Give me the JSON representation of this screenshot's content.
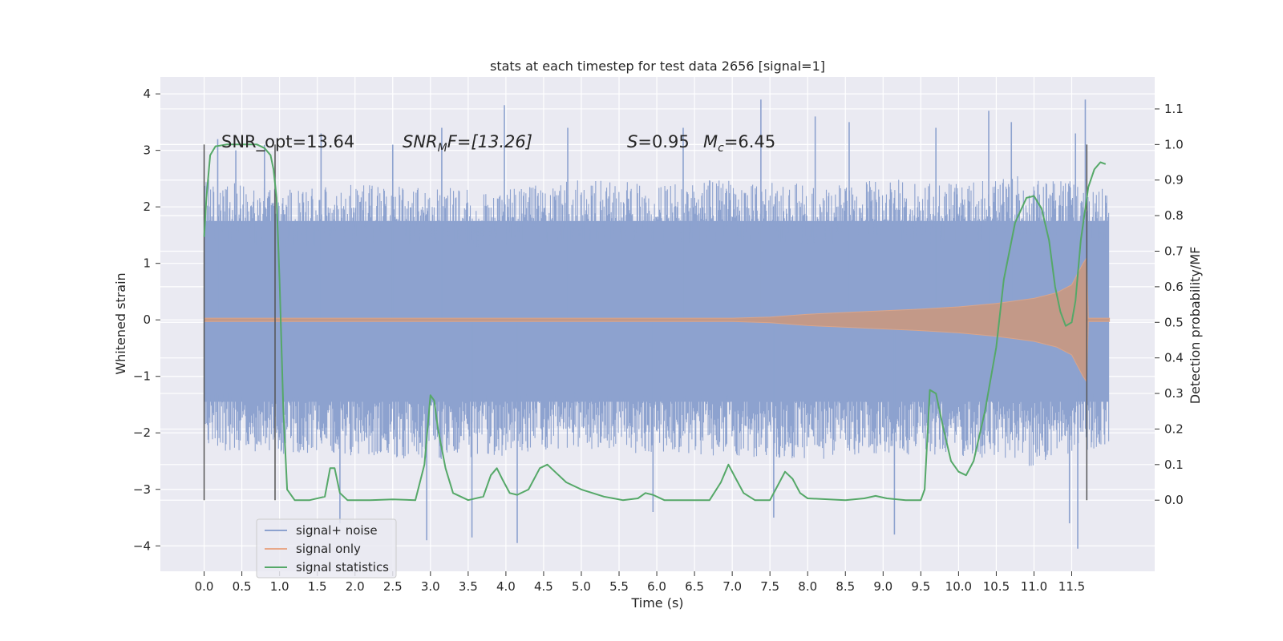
{
  "chart_data": {
    "type": "line",
    "title": "stats at each timestep for test data 2656 [signal=1]",
    "xlabel": "Time (s)",
    "ylabel_left": "Whitened strain",
    "ylabel_right": "Detection probability/MF",
    "xlim": [
      -0.58,
      12.6
    ],
    "ylim_left": [
      -4.45,
      4.3
    ],
    "ylim_right": [
      -0.2,
      1.19
    ],
    "x_ticks": [
      0.0,
      0.5,
      1.0,
      1.5,
      2.0,
      2.5,
      3.0,
      3.5,
      4.0,
      4.5,
      5.0,
      5.5,
      6.0,
      6.5,
      7.0,
      7.5,
      8.0,
      8.5,
      9.0,
      9.5,
      10.0,
      10.5,
      11.0,
      11.5
    ],
    "x_tick_labels": [
      "0.0",
      "0.5",
      "1.0",
      "1.5",
      "2.0",
      "2.5",
      "3.0",
      "3.5",
      "4.0",
      "4.5",
      "5.0",
      "5.5",
      "6.0",
      "6.5",
      "7.0",
      "7.5",
      "8.0",
      "8.5",
      "9.0",
      "9.5",
      "10.0",
      "10.5",
      "11.0",
      "11.5"
    ],
    "y_left_ticks": [
      -4,
      -3,
      -2,
      -1,
      0,
      1,
      2,
      3,
      4
    ],
    "y_left_tick_labels": [
      "−4",
      "−3",
      "−2",
      "−1",
      "0",
      "1",
      "2",
      "3",
      "4"
    ],
    "y_right_ticks": [
      0.0,
      0.1,
      0.2,
      0.3,
      0.4,
      0.5,
      0.6,
      0.7,
      0.8,
      0.9,
      1.0,
      1.1
    ],
    "y_right_tick_labels": [
      "0.0",
      "0.1",
      "0.2",
      "0.3",
      "0.4",
      "0.5",
      "0.6",
      "0.7",
      "0.8",
      "0.9",
      "1.0",
      "1.1"
    ],
    "grid": true,
    "legend_placement": "lower-left",
    "annotations": {
      "snr_opt": "SNR_opt=13.64",
      "snr_mf_symbol": "SNR",
      "snr_mf_sub": "M",
      "snr_mf_rest": "F=[13.26]",
      "s_symbol": "S",
      "s_rest": "=0.95",
      "mc_symbol": "M",
      "mc_sub": "c",
      "mc_rest": "=6.45"
    },
    "vertical_markers_x": [
      0.0,
      0.94,
      11.7
    ],
    "series": [
      {
        "name": "signal+ noise",
        "color": "#8da2cf",
        "axis": "left",
        "x_range": [
          0.0,
          11.99
        ],
        "envelope_upper": [
          [
            0.0,
            2.5
          ],
          [
            1.0,
            2.3
          ],
          [
            2.0,
            2.4
          ],
          [
            3.0,
            2.4
          ],
          [
            4.0,
            2.3
          ],
          [
            5.0,
            2.5
          ],
          [
            6.0,
            2.4
          ],
          [
            7.0,
            2.5
          ],
          [
            8.0,
            2.4
          ],
          [
            9.0,
            2.5
          ],
          [
            10.0,
            2.4
          ],
          [
            11.0,
            2.6
          ],
          [
            11.99,
            2.3
          ]
        ],
        "envelope_lower": [
          [
            0.0,
            -2.3
          ],
          [
            1.0,
            -2.4
          ],
          [
            2.0,
            -2.4
          ],
          [
            3.0,
            -2.5
          ],
          [
            4.0,
            -2.4
          ],
          [
            5.0,
            -2.3
          ],
          [
            6.0,
            -2.4
          ],
          [
            7.0,
            -2.4
          ],
          [
            8.0,
            -2.5
          ],
          [
            9.0,
            -2.4
          ],
          [
            10.0,
            -2.4
          ],
          [
            11.0,
            -2.6
          ],
          [
            11.99,
            -2.2
          ]
        ],
        "peaks": [
          [
            0.18,
            3.2
          ],
          [
            0.42,
            3.0
          ],
          [
            0.8,
            3.1
          ],
          [
            1.55,
            3.3
          ],
          [
            1.8,
            -3.6
          ],
          [
            2.5,
            3.1
          ],
          [
            2.95,
            -3.9
          ],
          [
            3.15,
            3.4
          ],
          [
            3.55,
            -3.85
          ],
          [
            3.98,
            3.8
          ],
          [
            4.15,
            -3.95
          ],
          [
            4.82,
            3.4
          ],
          [
            5.95,
            -3.4
          ],
          [
            6.35,
            3.4
          ],
          [
            7.38,
            3.9
          ],
          [
            7.55,
            -3.5
          ],
          [
            8.1,
            3.6
          ],
          [
            8.55,
            3.5
          ],
          [
            9.15,
            -3.8
          ],
          [
            9.7,
            3.4
          ],
          [
            10.4,
            3.7
          ],
          [
            10.7,
            3.5
          ],
          [
            11.47,
            -3.6
          ],
          [
            11.58,
            -4.05
          ],
          [
            11.68,
            3.9
          ],
          [
            11.55,
            3.3
          ]
        ]
      },
      {
        "name": "signal only",
        "color": "#dd8452",
        "axis": "left",
        "envelope": [
          [
            0.0,
            0.03
          ],
          [
            7.0,
            0.03
          ],
          [
            7.5,
            0.05
          ],
          [
            8.0,
            0.1
          ],
          [
            8.5,
            0.13
          ],
          [
            9.0,
            0.16
          ],
          [
            9.5,
            0.19
          ],
          [
            10.0,
            0.23
          ],
          [
            10.5,
            0.29
          ],
          [
            11.0,
            0.38
          ],
          [
            11.3,
            0.48
          ],
          [
            11.5,
            0.62
          ],
          [
            11.65,
            1.0
          ],
          [
            11.7,
            1.1
          ],
          [
            11.72,
            0.03
          ],
          [
            12.0,
            0.03
          ]
        ]
      },
      {
        "name": "signal statistics",
        "color": "#55a868",
        "axis": "right",
        "points": [
          [
            0.0,
            0.74
          ],
          [
            0.03,
            0.85
          ],
          [
            0.08,
            0.97
          ],
          [
            0.15,
            0.995
          ],
          [
            0.3,
            1.0
          ],
          [
            0.5,
            1.0
          ],
          [
            0.7,
            1.0
          ],
          [
            0.8,
            0.99
          ],
          [
            0.88,
            0.97
          ],
          [
            0.92,
            0.93
          ],
          [
            0.96,
            0.85
          ],
          [
            1.0,
            0.62
          ],
          [
            1.05,
            0.25
          ],
          [
            1.1,
            0.03
          ],
          [
            1.2,
            0.0
          ],
          [
            1.4,
            0.0
          ],
          [
            1.6,
            0.01
          ],
          [
            1.67,
            0.09
          ],
          [
            1.73,
            0.09
          ],
          [
            1.8,
            0.02
          ],
          [
            1.9,
            0.0
          ],
          [
            2.2,
            0.0
          ],
          [
            2.5,
            0.002
          ],
          [
            2.8,
            0.0
          ],
          [
            2.92,
            0.1
          ],
          [
            3.0,
            0.295
          ],
          [
            3.05,
            0.28
          ],
          [
            3.1,
            0.2
          ],
          [
            3.2,
            0.09
          ],
          [
            3.3,
            0.02
          ],
          [
            3.5,
            0.0
          ],
          [
            3.7,
            0.01
          ],
          [
            3.8,
            0.07
          ],
          [
            3.88,
            0.09
          ],
          [
            3.95,
            0.06
          ],
          [
            4.05,
            0.02
          ],
          [
            4.15,
            0.015
          ],
          [
            4.3,
            0.03
          ],
          [
            4.45,
            0.09
          ],
          [
            4.55,
            0.1
          ],
          [
            4.65,
            0.08
          ],
          [
            4.8,
            0.05
          ],
          [
            5.0,
            0.03
          ],
          [
            5.3,
            0.01
          ],
          [
            5.55,
            0.0
          ],
          [
            5.75,
            0.005
          ],
          [
            5.85,
            0.02
          ],
          [
            5.95,
            0.015
          ],
          [
            6.1,
            0.0
          ],
          [
            6.4,
            0.0
          ],
          [
            6.7,
            0.0
          ],
          [
            6.85,
            0.05
          ],
          [
            6.95,
            0.1
          ],
          [
            7.05,
            0.06
          ],
          [
            7.15,
            0.02
          ],
          [
            7.3,
            0.0
          ],
          [
            7.5,
            0.0
          ],
          [
            7.6,
            0.04
          ],
          [
            7.7,
            0.08
          ],
          [
            7.8,
            0.06
          ],
          [
            7.9,
            0.02
          ],
          [
            8.0,
            0.005
          ],
          [
            8.5,
            0.0
          ],
          [
            8.75,
            0.005
          ],
          [
            8.9,
            0.012
          ],
          [
            9.05,
            0.005
          ],
          [
            9.3,
            0.0
          ],
          [
            9.5,
            0.0
          ],
          [
            9.55,
            0.03
          ],
          [
            9.62,
            0.31
          ],
          [
            9.7,
            0.3
          ],
          [
            9.8,
            0.2
          ],
          [
            9.9,
            0.11
          ],
          [
            10.0,
            0.08
          ],
          [
            10.1,
            0.07
          ],
          [
            10.2,
            0.11
          ],
          [
            10.35,
            0.25
          ],
          [
            10.5,
            0.43
          ],
          [
            10.6,
            0.62
          ],
          [
            10.75,
            0.78
          ],
          [
            10.9,
            0.85
          ],
          [
            11.0,
            0.855
          ],
          [
            11.1,
            0.82
          ],
          [
            11.2,
            0.73
          ],
          [
            11.28,
            0.6
          ],
          [
            11.35,
            0.53
          ],
          [
            11.42,
            0.49
          ],
          [
            11.5,
            0.5
          ],
          [
            11.55,
            0.56
          ],
          [
            11.62,
            0.73
          ],
          [
            11.72,
            0.88
          ],
          [
            11.8,
            0.93
          ],
          [
            11.88,
            0.95
          ],
          [
            11.95,
            0.945
          ]
        ]
      }
    ]
  }
}
